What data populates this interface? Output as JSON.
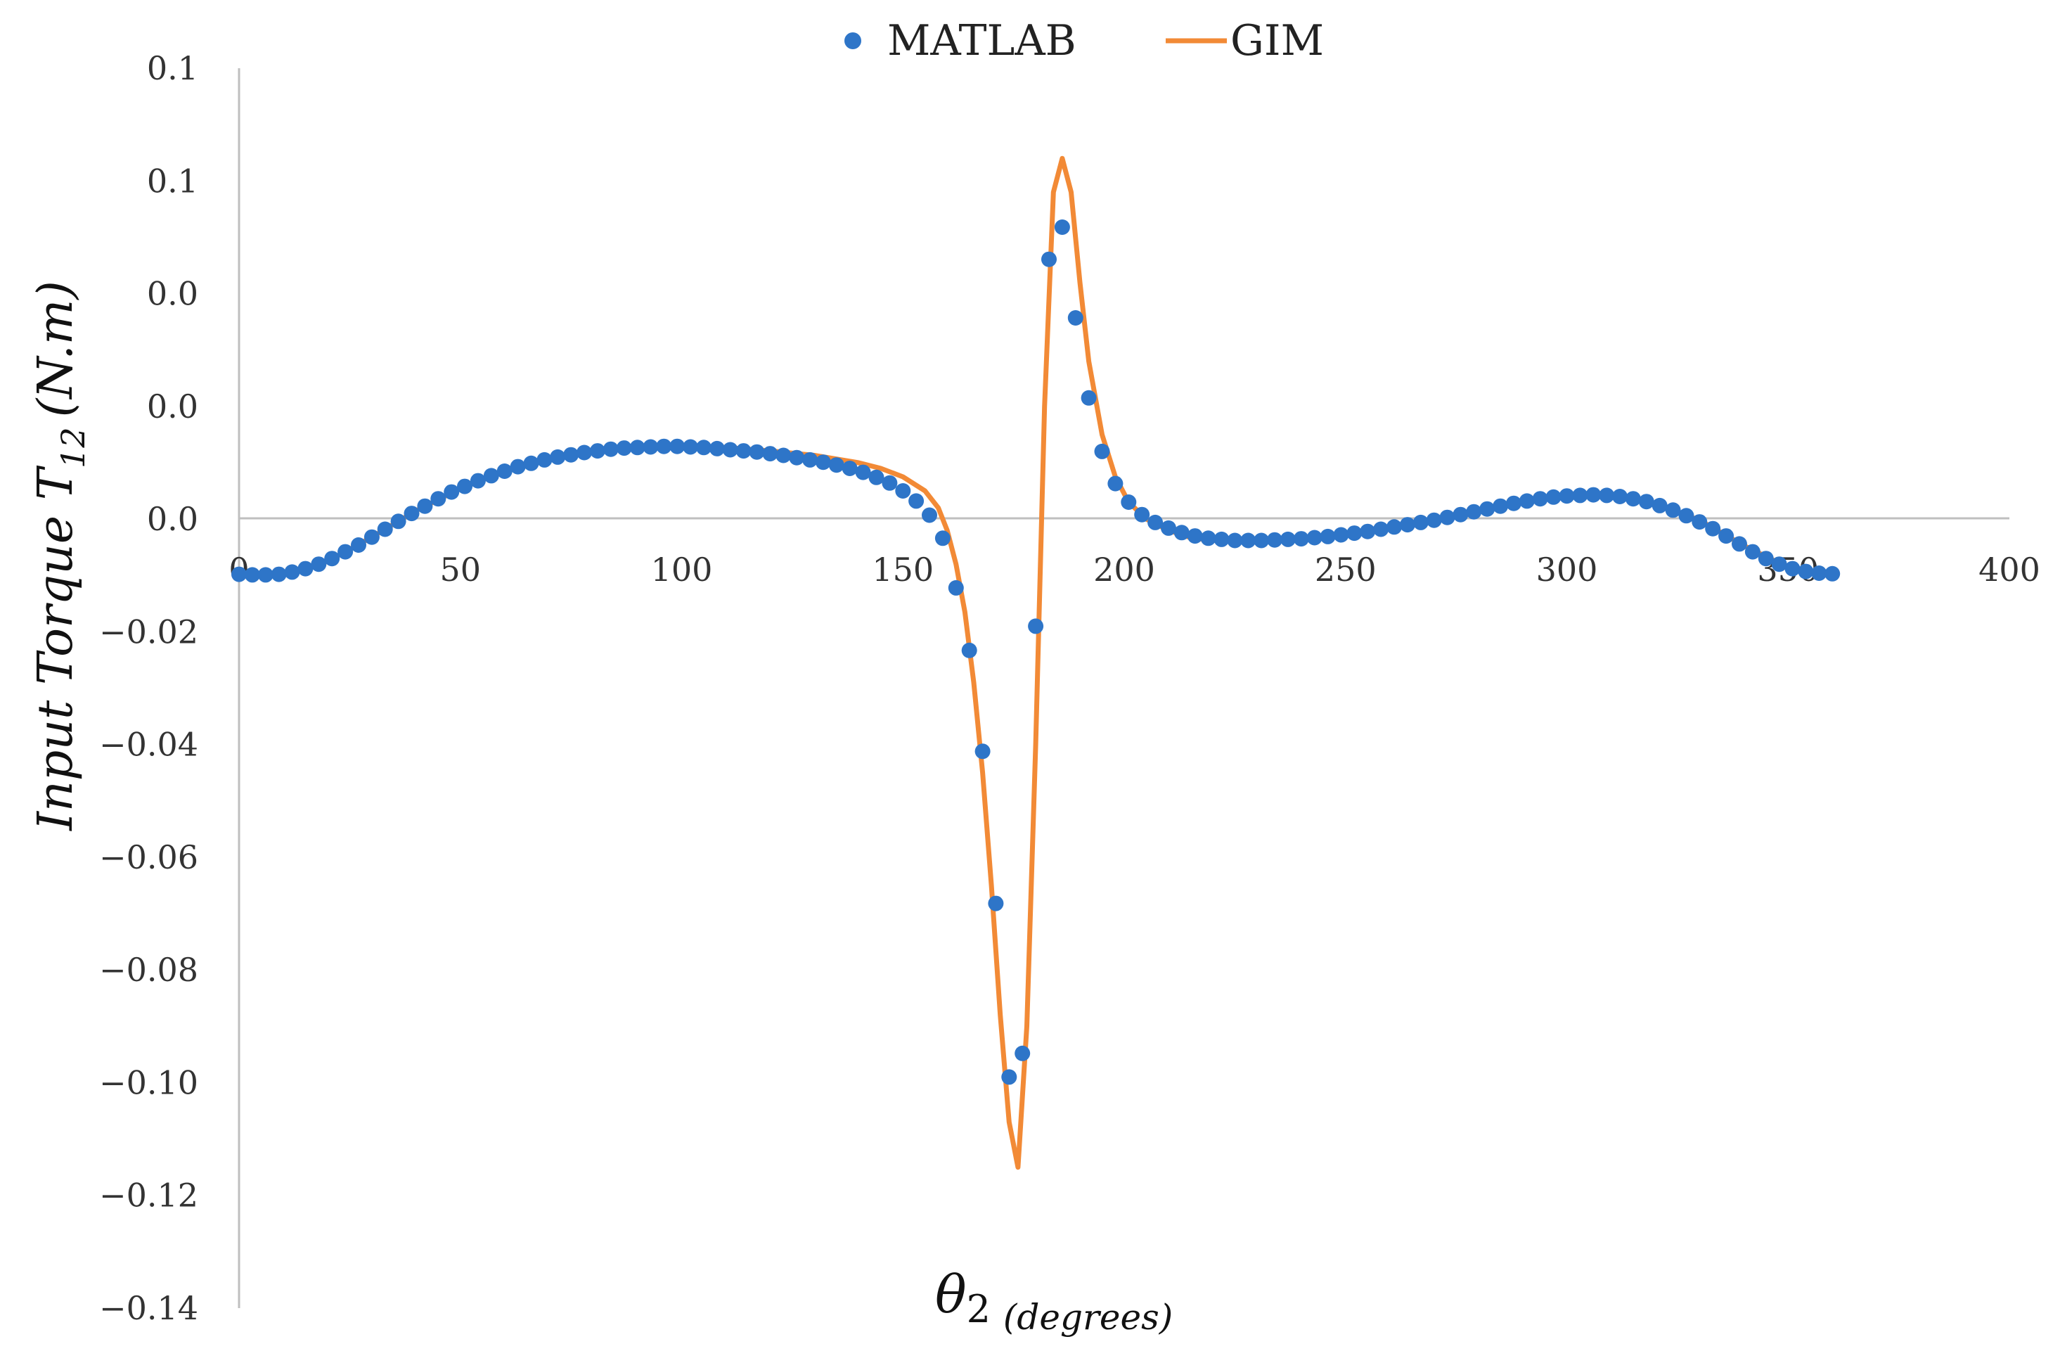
{
  "chart_data": {
    "type": "line",
    "title": "",
    "xlabel": "θ2 (degrees)",
    "ylabel": "Input Torque T12 (N.m)",
    "axis_title_parts": {
      "x_symbol": "θ",
      "x_subscript": "2",
      "x_unit": "(degrees)",
      "y_prefix": "Input Torque T",
      "y_subscript": "12",
      "y_unit": "(N.m)"
    },
    "xlim": [
      0,
      400
    ],
    "ylim": [
      -0.14,
      0.08
    ],
    "x_ticks": [
      0,
      50,
      100,
      150,
      200,
      250,
      300,
      350,
      400
    ],
    "x_tick_labels": [
      "0",
      "50",
      "100",
      "150",
      "200",
      "250",
      "300",
      "350",
      "400"
    ],
    "y_ticks": [
      0.08,
      0.06,
      0.04,
      0.02,
      0.0,
      -0.02,
      -0.04,
      -0.06,
      -0.08,
      -0.1,
      -0.12,
      -0.14
    ],
    "y_tick_labels": [
      "0.1",
      "0.1",
      "0.0",
      "0.0",
      "0.0",
      "−0.02",
      "−0.04",
      "−0.06",
      "−0.08",
      "−0.10",
      "−0.12",
      "−0.14"
    ],
    "grid": false,
    "legend_position": "top-center",
    "series": [
      {
        "name": "MATLAB",
        "type": "scatter",
        "color": "#2E75C8",
        "points": [
          [
            0,
            -0.0098
          ],
          [
            3,
            -0.0099
          ],
          [
            6,
            -0.0099
          ],
          [
            9,
            -0.0098
          ],
          [
            12,
            -0.0094
          ],
          [
            15,
            -0.0088
          ],
          [
            18,
            -0.008
          ],
          [
            21,
            -0.007
          ],
          [
            24,
            -0.0058
          ],
          [
            27,
            -0.0046
          ],
          [
            30,
            -0.0032
          ],
          [
            33,
            -0.0018
          ],
          [
            36,
            -0.0004
          ],
          [
            39,
            0.001
          ],
          [
            42,
            0.0023
          ],
          [
            45,
            0.0036
          ],
          [
            48,
            0.0048
          ],
          [
            51,
            0.0058
          ],
          [
            54,
            0.0068
          ],
          [
            57,
            0.0077
          ],
          [
            60,
            0.0085
          ],
          [
            63,
            0.0093
          ],
          [
            66,
            0.0099
          ],
          [
            69,
            0.0105
          ],
          [
            72,
            0.011
          ],
          [
            75,
            0.0114
          ],
          [
            78,
            0.0118
          ],
          [
            81,
            0.0121
          ],
          [
            84,
            0.0124
          ],
          [
            87,
            0.0126
          ],
          [
            90,
            0.0127
          ],
          [
            93,
            0.0128
          ],
          [
            96,
            0.0129
          ],
          [
            99,
            0.0129
          ],
          [
            102,
            0.0128
          ],
          [
            105,
            0.0127
          ],
          [
            108,
            0.0125
          ],
          [
            111,
            0.0123
          ],
          [
            114,
            0.0121
          ],
          [
            117,
            0.0119
          ],
          [
            120,
            0.0116
          ],
          [
            123,
            0.0113
          ],
          [
            126,
            0.0109
          ],
          [
            129,
            0.0105
          ],
          [
            132,
            0.0101
          ],
          [
            135,
            0.0096
          ],
          [
            138,
            0.009
          ],
          [
            141,
            0.0083
          ],
          [
            144,
            0.0074
          ],
          [
            147,
            0.0064
          ],
          [
            150,
            0.005
          ],
          [
            153,
            0.0032
          ],
          [
            156,
            0.0007
          ],
          [
            159,
            -0.0034
          ],
          [
            162,
            -0.0122
          ],
          [
            165,
            -0.0233
          ],
          [
            168,
            -0.0412
          ],
          [
            171,
            -0.0682
          ],
          [
            174,
            -0.099
          ],
          [
            177,
            -0.0948
          ],
          [
            180,
            -0.019
          ],
          [
            183,
            0.0461
          ],
          [
            186,
            0.0518
          ],
          [
            189,
            0.0357
          ],
          [
            192,
            0.0215
          ],
          [
            195,
            0.012
          ],
          [
            198,
            0.0063
          ],
          [
            201,
            0.003
          ],
          [
            204,
            0.0008
          ],
          [
            207,
            -0.0006
          ],
          [
            210,
            -0.0016
          ],
          [
            213,
            -0.0024
          ],
          [
            216,
            -0.003
          ],
          [
            219,
            -0.0034
          ],
          [
            222,
            -0.0036
          ],
          [
            225,
            -0.0038
          ],
          [
            228,
            -0.0038
          ],
          [
            231,
            -0.0038
          ],
          [
            234,
            -0.0037
          ],
          [
            237,
            -0.0036
          ],
          [
            240,
            -0.0035
          ],
          [
            243,
            -0.0033
          ],
          [
            246,
            -0.0031
          ],
          [
            249,
            -0.0028
          ],
          [
            252,
            -0.0025
          ],
          [
            255,
            -0.0022
          ],
          [
            258,
            -0.0018
          ],
          [
            261,
            -0.0014
          ],
          [
            264,
            -0.001
          ],
          [
            267,
            -0.0006
          ],
          [
            270,
            -0.0002
          ],
          [
            273,
            0.0003
          ],
          [
            276,
            0.0008
          ],
          [
            279,
            0.0013
          ],
          [
            282,
            0.0018
          ],
          [
            285,
            0.0023
          ],
          [
            288,
            0.0028
          ],
          [
            291,
            0.0032
          ],
          [
            294,
            0.0036
          ],
          [
            297,
            0.0039
          ],
          [
            300,
            0.0041
          ],
          [
            303,
            0.0042
          ],
          [
            306,
            0.0043
          ],
          [
            309,
            0.0042
          ],
          [
            312,
            0.004
          ],
          [
            315,
            0.0036
          ],
          [
            318,
            0.0031
          ],
          [
            321,
            0.0024
          ],
          [
            324,
            0.0016
          ],
          [
            327,
            0.0006
          ],
          [
            330,
            -0.0005
          ],
          [
            333,
            -0.0017
          ],
          [
            336,
            -0.003
          ],
          [
            339,
            -0.0044
          ],
          [
            342,
            -0.0058
          ],
          [
            345,
            -0.007
          ],
          [
            348,
            -0.008
          ],
          [
            351,
            -0.0088
          ],
          [
            354,
            -0.0093
          ],
          [
            357,
            -0.0096
          ],
          [
            360,
            -0.0097
          ]
        ]
      },
      {
        "name": "GIM",
        "type": "line",
        "color": "#F28A36",
        "points": [
          [
            0,
            -0.0098
          ],
          [
            10,
            -0.0096
          ],
          [
            20,
            -0.0075
          ],
          [
            30,
            -0.0032
          ],
          [
            40,
            0.0015
          ],
          [
            50,
            0.0054
          ],
          [
            60,
            0.0085
          ],
          [
            70,
            0.0107
          ],
          [
            80,
            0.012
          ],
          [
            90,
            0.0128
          ],
          [
            100,
            0.013
          ],
          [
            110,
            0.0127
          ],
          [
            120,
            0.0121
          ],
          [
            130,
            0.0113
          ],
          [
            140,
            0.01
          ],
          [
            145,
            0.009
          ],
          [
            150,
            0.0075
          ],
          [
            155,
            0.005
          ],
          [
            158,
            0.002
          ],
          [
            160,
            -0.002
          ],
          [
            162,
            -0.008
          ],
          [
            164,
            -0.0165
          ],
          [
            166,
            -0.029
          ],
          [
            168,
            -0.045
          ],
          [
            170,
            -0.065
          ],
          [
            172,
            -0.088
          ],
          [
            174,
            -0.107
          ],
          [
            176,
            -0.115
          ],
          [
            178,
            -0.09
          ],
          [
            180,
            -0.04
          ],
          [
            182,
            0.02
          ],
          [
            184,
            0.058
          ],
          [
            186,
            0.064
          ],
          [
            188,
            0.058
          ],
          [
            190,
            0.042
          ],
          [
            192,
            0.028
          ],
          [
            195,
            0.015
          ],
          [
            198,
            0.0075
          ],
          [
            201,
            0.003
          ],
          [
            205,
            0.0
          ],
          [
            210,
            -0.002
          ],
          [
            215,
            -0.0033
          ],
          [
            220,
            -0.0038
          ],
          [
            230,
            -0.0039
          ],
          [
            240,
            -0.0036
          ],
          [
            250,
            -0.0029
          ],
          [
            260,
            -0.0017
          ],
          [
            270,
            0.0
          ],
          [
            280,
            0.0016
          ],
          [
            290,
            0.0031
          ],
          [
            300,
            0.004
          ],
          [
            305,
            0.0043
          ],
          [
            310,
            0.0041
          ],
          [
            320,
            0.0027
          ],
          [
            330,
            -0.0002
          ],
          [
            340,
            -0.0047
          ],
          [
            350,
            -0.0086
          ],
          [
            360,
            -0.0097
          ]
        ]
      }
    ]
  }
}
